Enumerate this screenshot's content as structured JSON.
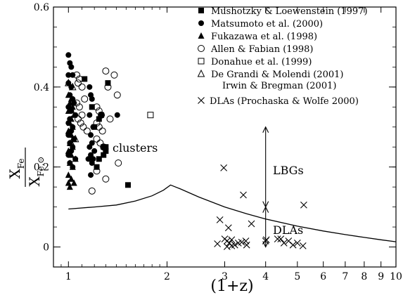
{
  "chart_data": {
    "type": "scatter",
    "xscale": "log",
    "xlim": [
      0.9,
      10
    ],
    "ylim": [
      -0.05,
      0.6
    ],
    "xlabel": "(1+z)",
    "ylabel": {
      "main": "X",
      "main_sub": "Fe",
      "denom": "X",
      "denom_sub": "Fe,⊙"
    },
    "xticks": [
      1,
      2,
      3,
      4,
      5,
      6,
      7,
      8,
      9,
      10
    ],
    "yticks": [
      0,
      0.2,
      0.4,
      0.6
    ],
    "ytick_labels": [
      "0",
      "0.2",
      "0.4",
      "0.6"
    ],
    "legend": {
      "position": "top-right",
      "entries": [
        {
          "label": "Mushotzky & Loewenstein (1997)",
          "marker": "filled-square"
        },
        {
          "label": "Matsumoto et al. (2000)",
          "marker": "filled-circle"
        },
        {
          "label": "Fukazawa et al. (1998)",
          "marker": "filled-triangle"
        },
        {
          "label": "Allen & Fabian (1998)",
          "marker": "open-circle"
        },
        {
          "label": "Donahue et al. (1999)",
          "marker": "open-square"
        },
        {
          "label": "De Grandi & Molendi (2001)",
          "marker": "open-triangle"
        },
        {
          "label": "Irwin & Bregman (2001)",
          "marker": "none"
        },
        {
          "label": "DLAs (Prochaska & Wolfe 2000)",
          "marker": "cross"
        }
      ]
    },
    "annotations": {
      "clusters": "clusters",
      "lbgs": "LBGs",
      "dlas": "DLAs"
    },
    "lbg_arrow": {
      "x": 4.0,
      "y_top": 0.3,
      "y_bottom": 0.1
    },
    "dla_arrow": {
      "x": 4.0,
      "y_top": 0.1,
      "y_bottom": 0.0
    },
    "model_curve": [
      [
        1.0,
        0.095
      ],
      [
        1.2,
        0.1
      ],
      [
        1.4,
        0.105
      ],
      [
        1.6,
        0.115
      ],
      [
        1.8,
        0.128
      ],
      [
        1.95,
        0.142
      ],
      [
        2.05,
        0.155
      ],
      [
        2.2,
        0.145
      ],
      [
        2.5,
        0.125
      ],
      [
        3.0,
        0.1
      ],
      [
        3.5,
        0.083
      ],
      [
        4.0,
        0.07
      ],
      [
        5.0,
        0.052
      ],
      [
        6.0,
        0.04
      ],
      [
        7.0,
        0.031
      ],
      [
        8.0,
        0.024
      ],
      [
        9.0,
        0.018
      ],
      [
        10.0,
        0.013
      ]
    ],
    "series": [
      {
        "name": "Mushotzky & Loewenstein (1997)",
        "marker": "filled-square",
        "x": [
          1.12,
          1.18,
          1.2,
          1.24,
          1.26,
          1.28,
          1.3,
          1.24,
          1.28,
          1.22,
          1.3,
          1.32,
          1.52
        ],
        "y": [
          0.42,
          0.35,
          0.3,
          0.32,
          0.33,
          0.25,
          0.25,
          0.22,
          0.23,
          0.2,
          0.24,
          0.41,
          0.155
        ]
      },
      {
        "name": "Matsumoto et al. (2000)",
        "marker": "filled-circle",
        "x": [
          1.0,
          1.01,
          1.02,
          1.0,
          1.03,
          1.0,
          1.02,
          1.01,
          1.03,
          1.04,
          1.0,
          1.02,
          1.05,
          1.01,
          1.0,
          1.03,
          1.02,
          1.0,
          1.04,
          1.01,
          1.03,
          1.02,
          1.0,
          1.05,
          1.01,
          1.03,
          1.16,
          1.17,
          1.18,
          1.16,
          1.19,
          1.17,
          1.18,
          1.16,
          1.2,
          1.17,
          1.15,
          1.19,
          1.18,
          1.17,
          1.41
        ],
        "y": [
          0.48,
          0.46,
          0.45,
          0.43,
          0.43,
          0.41,
          0.4,
          0.38,
          0.37,
          0.36,
          0.35,
          0.34,
          0.33,
          0.32,
          0.31,
          0.3,
          0.29,
          0.28,
          0.27,
          0.26,
          0.25,
          0.24,
          0.23,
          0.22,
          0.21,
          0.2,
          0.4,
          0.38,
          0.37,
          0.33,
          0.3,
          0.28,
          0.26,
          0.25,
          0.24,
          0.23,
          0.22,
          0.22,
          0.21,
          0.18,
          0.33
        ]
      },
      {
        "name": "Fukazawa et al. (1998)",
        "marker": "filled-triangle",
        "x": [
          1.0,
          1.02,
          1.01,
          1.03,
          1.0,
          1.04,
          1.02,
          1.01,
          1.03,
          1.0,
          1.02,
          1.04,
          1.01,
          1.03,
          1.0,
          1.02,
          1.05,
          1.01,
          1.03,
          1.0,
          1.02,
          1.04,
          1.01,
          1.0
        ],
        "y": [
          0.38,
          0.37,
          0.36,
          0.35,
          0.34,
          0.33,
          0.32,
          0.31,
          0.3,
          0.29,
          0.28,
          0.27,
          0.26,
          0.25,
          0.24,
          0.23,
          0.22,
          0.21,
          0.2,
          0.18,
          0.17,
          0.16,
          0.15,
          0.16
        ]
      },
      {
        "name": "Allen & Fabian (1998)",
        "marker": "open-circle",
        "x": [
          1.06,
          1.08,
          1.07,
          1.1,
          1.12,
          1.06,
          1.08,
          1.1,
          1.07,
          1.09,
          1.11,
          1.14,
          1.22,
          1.24,
          1.26,
          1.22,
          1.24,
          1.27,
          1.22,
          1.25,
          1.28,
          1.3,
          1.32,
          1.34,
          1.38,
          1.41,
          1.42,
          1.22,
          1.3,
          1.18
        ],
        "y": [
          0.43,
          0.42,
          0.41,
          0.4,
          0.37,
          0.36,
          0.35,
          0.33,
          0.32,
          0.31,
          0.3,
          0.29,
          0.35,
          0.34,
          0.33,
          0.31,
          0.3,
          0.29,
          0.27,
          0.26,
          0.25,
          0.44,
          0.4,
          0.32,
          0.43,
          0.38,
          0.21,
          0.19,
          0.17,
          0.14
        ]
      },
      {
        "name": "Donahue et al. (1999)",
        "marker": "open-square",
        "x": [
          1.78
        ],
        "y": [
          0.33
        ]
      },
      {
        "name": "De Grandi & Molendi (2001)",
        "marker": "open-triangle",
        "x": [
          1.0,
          1.03,
          1.05,
          1.02
        ],
        "y": [
          0.41,
          0.4,
          0.27,
          0.26
        ]
      },
      {
        "name": "DLAs (Prochaska & Wolfe 2000)",
        "marker": "cross",
        "x": [
          2.98,
          2.9,
          3.42,
          3.62,
          3.08,
          2.85,
          3.0,
          3.05,
          3.1,
          3.15,
          3.22,
          3.3,
          3.38,
          3.48,
          3.5,
          3.05,
          3.15,
          4.0,
          4.02,
          4.35,
          4.45,
          4.55,
          4.7,
          4.85,
          5.0,
          5.2,
          5.23
        ],
        "y": [
          0.198,
          0.068,
          0.13,
          0.058,
          0.048,
          0.008,
          0.02,
          0.015,
          0.01,
          0.018,
          0.005,
          0.01,
          0.012,
          0.015,
          0.005,
          0.001,
          0.003,
          0.015,
          0.018,
          0.02,
          0.02,
          0.01,
          0.015,
          0.005,
          0.01,
          0.003,
          0.105
        ]
      }
    ]
  }
}
